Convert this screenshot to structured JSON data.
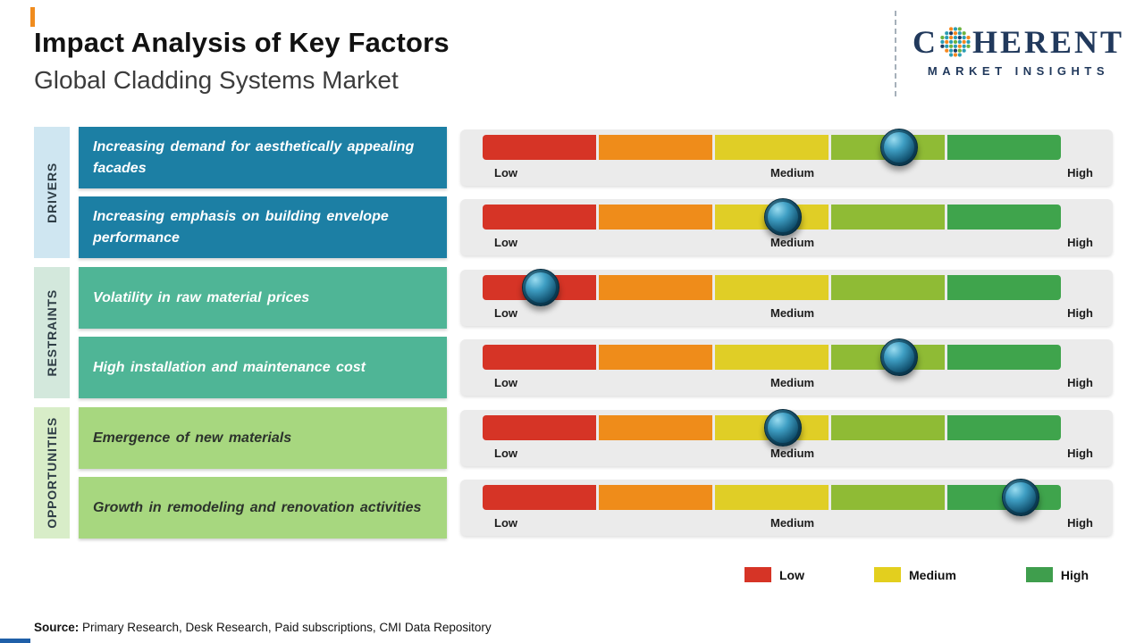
{
  "page": {
    "title": "Impact Analysis of Key Factors",
    "subtitle": "Global Cladding Systems Market"
  },
  "logo": {
    "brand_prefix": "C",
    "brand_suffix": "HERENT",
    "tagline": "MARKET INSIGHTS",
    "brand_color": "#21395c"
  },
  "scale": {
    "low": "Low",
    "medium": "Medium",
    "high": "High"
  },
  "slider": {
    "segment_colors": [
      "#d63426",
      "#ef8c1a",
      "#e0ce26",
      "#8fbb35",
      "#3fa44c"
    ]
  },
  "categories": [
    {
      "label": "DRIVERS",
      "factors": [
        {
          "text": "Increasing demand for aesthetically appealing facades",
          "impact_percent": 72
        },
        {
          "text": "Increasing emphasis on building envelope performance",
          "impact_percent": 52
        }
      ]
    },
    {
      "label": "RESTRAINTS",
      "factors": [
        {
          "text": "Volatility in raw material prices",
          "impact_percent": 10
        },
        {
          "text": "High installation and maintenance cost",
          "impact_percent": 72
        }
      ]
    },
    {
      "label": "OPPORTUNITIES",
      "factors": [
        {
          "text": "Emergence of new materials",
          "impact_percent": 52
        },
        {
          "text": "Growth in remodeling and renovation activities",
          "impact_percent": 93
        }
      ]
    }
  ],
  "legend": [
    {
      "label": "Low",
      "color": "#d63426"
    },
    {
      "label": "Medium",
      "color": "#e3cf1e"
    },
    {
      "label": "High",
      "color": "#3f9e4d"
    }
  ],
  "source": {
    "label": "Source:",
    "text": " Primary Research, Desk Research, Paid subscriptions, CMI Data Repository"
  },
  "chart_data": {
    "type": "table",
    "title": "Impact Analysis of Key Factors",
    "subtitle": "Global Cladding Systems Market",
    "scale": {
      "labels": [
        "Low",
        "Medium",
        "High"
      ],
      "range_percent": [
        0,
        100
      ]
    },
    "rows": [
      {
        "category": "Drivers",
        "factor": "Increasing demand for aesthetically appealing facades",
        "impact_percent": 72
      },
      {
        "category": "Drivers",
        "factor": "Increasing emphasis on building envelope performance",
        "impact_percent": 52
      },
      {
        "category": "Restraints",
        "factor": "Volatility in raw material prices",
        "impact_percent": 10
      },
      {
        "category": "Restraints",
        "factor": "High installation and maintenance cost",
        "impact_percent": 72
      },
      {
        "category": "Opportunities",
        "factor": "Emergence of new materials",
        "impact_percent": 52
      },
      {
        "category": "Opportunities",
        "factor": "Growth in remodeling and renovation activities",
        "impact_percent": 93
      }
    ],
    "legend": [
      "Low",
      "Medium",
      "High"
    ]
  }
}
